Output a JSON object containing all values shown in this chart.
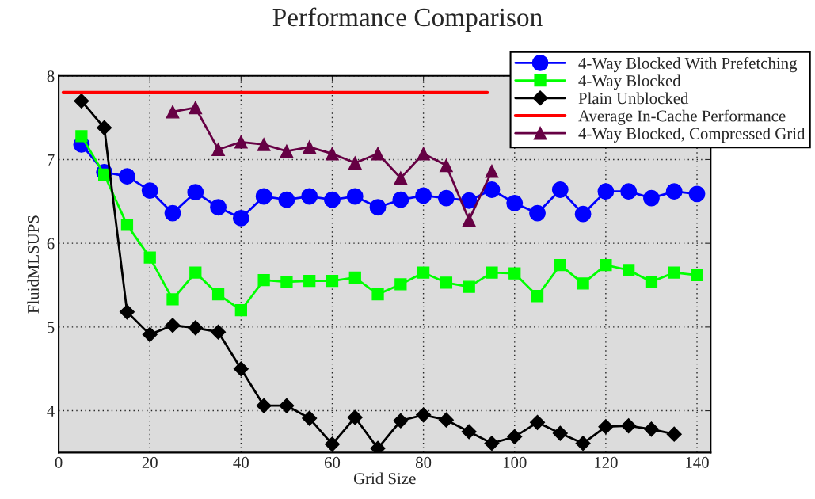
{
  "chart_data": {
    "type": "line",
    "title": "Performance Comparison",
    "xlabel": "Grid Size",
    "ylabel": "FluidMLSUPS",
    "xlim": [
      0,
      143
    ],
    "xticks": [
      0,
      20,
      40,
      60,
      80,
      100,
      120,
      140
    ],
    "ylim": [
      3.5,
      8
    ],
    "yticks": [
      4,
      5,
      6,
      7,
      8
    ],
    "grid": true,
    "legend": "top right",
    "x": [
      5,
      10,
      15,
      20,
      25,
      30,
      35,
      40,
      45,
      50,
      55,
      60,
      65,
      70,
      75,
      80,
      85,
      90,
      95,
      100,
      105,
      110,
      115,
      120,
      125,
      130,
      135,
      140
    ],
    "series": [
      {
        "name": "4-Way Blocked With Prefetching",
        "color": "#0000ff",
        "marker": "circle",
        "values": [
          7.18,
          6.85,
          6.8,
          6.63,
          6.36,
          6.61,
          6.43,
          6.3,
          6.56,
          6.52,
          6.56,
          6.52,
          6.56,
          6.43,
          6.52,
          6.57,
          6.54,
          6.51,
          6.64,
          6.48,
          6.36,
          6.64,
          6.35,
          6.62,
          6.62,
          6.54,
          6.62,
          6.59
        ]
      },
      {
        "name": "4-Way Blocked",
        "color": "#00ff00",
        "marker": "square",
        "values": [
          7.28,
          6.82,
          6.22,
          5.83,
          5.33,
          5.65,
          5.39,
          5.2,
          5.56,
          5.54,
          5.55,
          5.55,
          5.59,
          5.39,
          5.51,
          5.65,
          5.53,
          5.48,
          5.65,
          5.64,
          5.37,
          5.74,
          5.52,
          5.74,
          5.68,
          5.54,
          5.65,
          5.62
        ]
      },
      {
        "name": "Plain Unblocked",
        "color": "#000000",
        "marker": "diamond",
        "values": [
          7.7,
          7.38,
          5.18,
          4.91,
          5.02,
          4.99,
          4.94,
          4.5,
          4.06,
          4.06,
          3.91,
          3.6,
          3.92,
          3.55,
          3.88,
          3.95,
          3.89,
          3.75,
          3.61,
          3.69,
          3.86,
          3.73,
          3.61,
          3.81,
          3.82,
          3.78,
          3.72,
          null
        ]
      },
      {
        "name": "Average In-Cache Performance",
        "color": "#ff0000",
        "marker": "none",
        "x": [
          1,
          94
        ],
        "values": [
          7.8,
          7.8
        ]
      },
      {
        "name": "4-Way Blocked, Compressed Grid",
        "color": "#660044",
        "marker": "triangle",
        "values": [
          null,
          null,
          null,
          null,
          7.57,
          7.62,
          7.12,
          7.21,
          7.18,
          7.1,
          7.15,
          7.07,
          6.96,
          7.07,
          6.78,
          7.07,
          6.93,
          6.28,
          6.86,
          null,
          null,
          null,
          null,
          null,
          null,
          null,
          null,
          null
        ]
      }
    ]
  }
}
